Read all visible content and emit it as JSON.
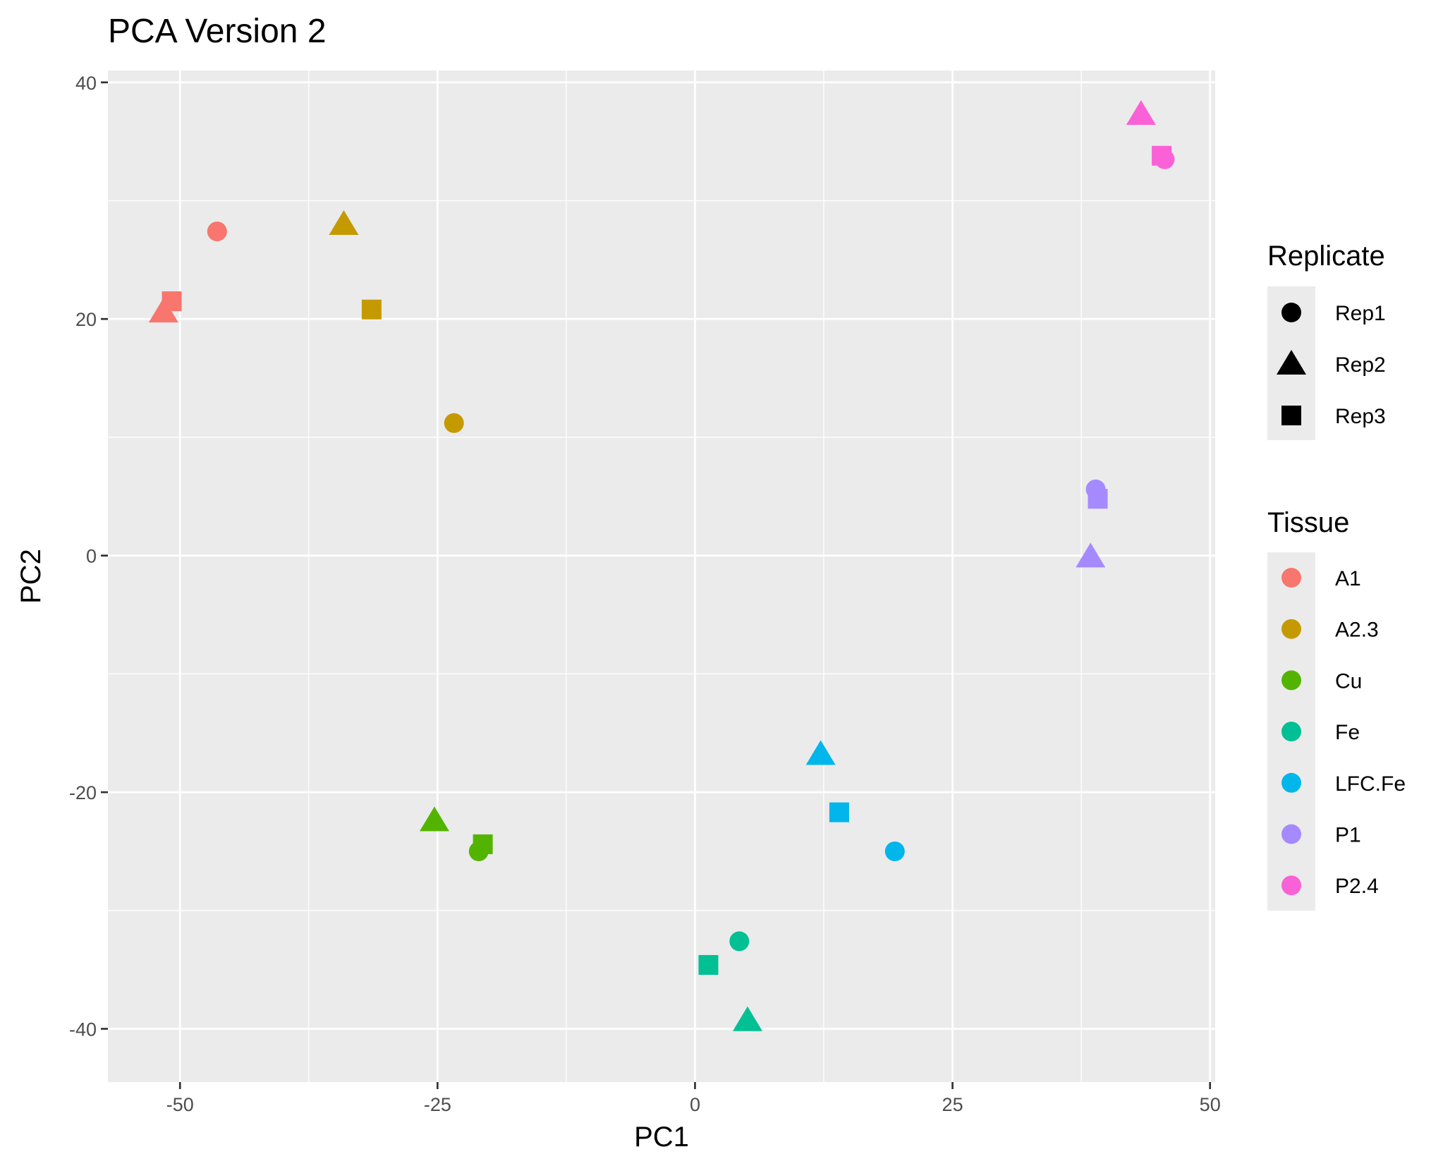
{
  "chart_data": {
    "type": "scatter",
    "title": "PCA Version 2",
    "xlabel": "PC1",
    "ylabel": "PC2",
    "xlim": [
      -57,
      50.5
    ],
    "ylim": [
      -44.5,
      41
    ],
    "x_ticks": [
      -50,
      -25,
      0,
      25,
      50
    ],
    "y_ticks": [
      -40,
      -20,
      0,
      20,
      40
    ],
    "x_tick_labels": [
      "-50",
      "-25",
      "0",
      "25",
      "50"
    ],
    "y_tick_labels": [
      "-40",
      "-20",
      "0",
      "20",
      "40"
    ],
    "grid": true,
    "panel_background": "#ebebeb",
    "legend_position": "right",
    "legends": {
      "replicate": {
        "title": "Replicate",
        "entries": [
          {
            "label": "Rep1",
            "shape": "circle"
          },
          {
            "label": "Rep2",
            "shape": "triangle"
          },
          {
            "label": "Rep3",
            "shape": "square"
          }
        ]
      },
      "tissue": {
        "title": "Tissue",
        "entries": [
          {
            "label": "A1",
            "color": "#F8766D"
          },
          {
            "label": "A2.3",
            "color": "#C49A00"
          },
          {
            "label": "Cu",
            "color": "#53B400"
          },
          {
            "label": "Fe",
            "color": "#00C094"
          },
          {
            "label": "LFC.Fe",
            "color": "#00B6EB"
          },
          {
            "label": "P1",
            "color": "#A58AFF"
          },
          {
            "label": "P2.4",
            "color": "#FB61D7"
          }
        ]
      }
    },
    "points": [
      {
        "x": -46.4,
        "y": 27.4,
        "tissue": "A1",
        "replicate": "Rep1"
      },
      {
        "x": -51.6,
        "y": 20.6,
        "tissue": "A1",
        "replicate": "Rep2"
      },
      {
        "x": -50.8,
        "y": 21.5,
        "tissue": "A1",
        "replicate": "Rep3"
      },
      {
        "x": -23.4,
        "y": 11.2,
        "tissue": "A2.3",
        "replicate": "Rep1"
      },
      {
        "x": -34.1,
        "y": 28.0,
        "tissue": "A2.3",
        "replicate": "Rep2"
      },
      {
        "x": -31.4,
        "y": 20.8,
        "tissue": "A2.3",
        "replicate": "Rep3"
      },
      {
        "x": -21.0,
        "y": -25.0,
        "tissue": "Cu",
        "replicate": "Rep1"
      },
      {
        "x": -25.3,
        "y": -22.4,
        "tissue": "Cu",
        "replicate": "Rep2"
      },
      {
        "x": -20.6,
        "y": -24.4,
        "tissue": "Cu",
        "replicate": "Rep3"
      },
      {
        "x": 4.3,
        "y": -32.6,
        "tissue": "Fe",
        "replicate": "Rep1"
      },
      {
        "x": 5.1,
        "y": -39.3,
        "tissue": "Fe",
        "replicate": "Rep2"
      },
      {
        "x": 1.3,
        "y": -34.6,
        "tissue": "Fe",
        "replicate": "Rep3"
      },
      {
        "x": 19.4,
        "y": -25.0,
        "tissue": "LFC.Fe",
        "replicate": "Rep1"
      },
      {
        "x": 12.2,
        "y": -16.8,
        "tissue": "LFC.Fe",
        "replicate": "Rep2"
      },
      {
        "x": 14.0,
        "y": -21.7,
        "tissue": "LFC.Fe",
        "replicate": "Rep3"
      },
      {
        "x": 38.9,
        "y": 5.6,
        "tissue": "P1",
        "replicate": "Rep1"
      },
      {
        "x": 38.4,
        "y": -0.1,
        "tissue": "P1",
        "replicate": "Rep2"
      },
      {
        "x": 39.1,
        "y": 4.8,
        "tissue": "P1",
        "replicate": "Rep3"
      },
      {
        "x": 45.6,
        "y": 33.5,
        "tissue": "P2.4",
        "replicate": "Rep1"
      },
      {
        "x": 43.3,
        "y": 37.3,
        "tissue": "P2.4",
        "replicate": "Rep2"
      },
      {
        "x": 45.3,
        "y": 33.8,
        "tissue": "P2.4",
        "replicate": "Rep3"
      }
    ]
  }
}
